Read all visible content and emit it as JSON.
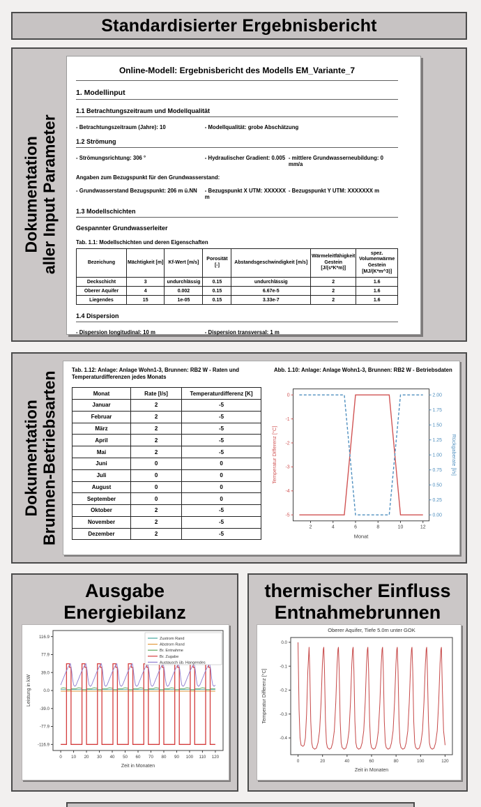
{
  "page": {
    "title": "Standardisierter Ergebnisbericht"
  },
  "colors": {
    "panel_gray": "#cbc7c7",
    "border_dark": "#4a4a4a",
    "temp_red": "#d05252",
    "rate_blue": "#4f8fbf"
  },
  "panel_input": {
    "side_label_line1": "Dokumentation",
    "side_label_line2": "aller Input Parameter",
    "doc": {
      "title": "Online-Modell: Ergebnisbericht des Modells EM_Variante_7",
      "s1": "1. Modellinput",
      "s11": "1.1 Betrachtungszeitraum und Modellqualität",
      "s11_items": [
        "- Betrachtungszeitraum (Jahre): 10",
        "- Modellqualität: grobe Abschätzung"
      ],
      "s12": "1.2 Strömung",
      "s12_row1": [
        "- Strömungsrichtung: 306 °",
        "- Hydraulischer Gradient: 0.005",
        "- mittlere Grundwasserneubildung: 0 mm/a"
      ],
      "s12_note": "Angaben zum Bezugspunkt für den Grundwasserstand:",
      "s12_row2": [
        "- Grundwasserstand Bezugspunkt: 206 m ü.NN",
        "- Bezugspunkt X UTM: XXXXXX m",
        "- Bezugspunkt Y UTM: XXXXXXX m"
      ],
      "s13": "1.3 Modellschichten",
      "s13_sub": "Gespannter Grundwasserleiter",
      "table_caption": "Tab. 1.1: Modellschichten und deren Eigenschaften",
      "layers_table": {
        "headers": [
          "Bezeichung",
          "Mächtigkeit [m]",
          "Kf-Wert [m/s]",
          "Porosität [-]",
          "Abstandsgeschwindigkeit [m/s]",
          "Wärmeleitfähigkeit\nGestein [J/(s*K*m)]",
          "spez. Volumenwärme\nGestein [MJ/(K*m^3)]"
        ],
        "rows": [
          [
            "Deckschicht",
            "3",
            "undurchlässig",
            "0.15",
            "undurchlässig",
            "2",
            "1.6"
          ],
          [
            "Oberer Aquifer",
            "4",
            "0.002",
            "0.15",
            "6.67e-5",
            "2",
            "1.6"
          ],
          [
            "Liegendes",
            "15",
            "1e-05",
            "0.15",
            "3.33e-7",
            "2",
            "1.6"
          ]
        ]
      },
      "s14": "1.4 Dispersion",
      "s14_items": [
        "- Dispersion longitudinal: 10 m",
        "- Dispersion transversal: 1 m"
      ]
    }
  },
  "panel_wells": {
    "side_label_line1": "Dokumentation",
    "side_label_line2": "Brunnen-Betriebsarten",
    "table_caption": "Tab. 1.12: Anlage: Anlage Wohn1-3, Brunnen: RB2 W - Raten und Temperaturdifferenzen jedes Monats",
    "figure_caption": "Abb. 1.10: Anlage: Anlage Wohn1-3, Brunnen: RB2 W - Betriebsdaten",
    "months_table": {
      "headers": [
        "Monat",
        "Rate [l/s]",
        "Temperaturdifferenz [K]"
      ],
      "rows": [
        [
          "Januar",
          "2",
          "-5"
        ],
        [
          "Februar",
          "2",
          "-5"
        ],
        [
          "März",
          "2",
          "-5"
        ],
        [
          "April",
          "2",
          "-5"
        ],
        [
          "Mai",
          "2",
          "-5"
        ],
        [
          "Juni",
          "0",
          "0"
        ],
        [
          "Juli",
          "0",
          "0"
        ],
        [
          "August",
          "0",
          "0"
        ],
        [
          "September",
          "0",
          "0"
        ],
        [
          "Oktober",
          "2",
          "-5"
        ],
        [
          "November",
          "2",
          "-5"
        ],
        [
          "Dezember",
          "2",
          "-5"
        ]
      ]
    }
  },
  "panel_energy": {
    "title_line1": "Ausgabe",
    "title_line2": "Energiebilanz"
  },
  "panel_thermal": {
    "title_line1": "thermischer Einfluss",
    "title_line2": "Entnahmebrunnen"
  },
  "chart_data": [
    {
      "id": "betriebsdaten",
      "type": "line",
      "xlabel": "Monat",
      "x_ticks": [
        2,
        4,
        6,
        8,
        10,
        12
      ],
      "months": [
        1,
        2,
        3,
        4,
        5,
        6,
        7,
        8,
        9,
        10,
        11,
        12
      ],
      "left_axis": {
        "label": "Temperatur Differenz [°C]",
        "color": "#d05252",
        "ticks": [
          "0",
          "-1",
          "-2",
          "-3",
          "-4",
          "-5"
        ],
        "min": -5,
        "max": 0
      },
      "right_axis": {
        "label": "Rückgaberate [l/s]",
        "color": "#4f8fbf",
        "ticks": [
          "2.00",
          "1.75",
          "1.50",
          "1.25",
          "1.00",
          "0.75",
          "0.50",
          "0.25",
          "0.00"
        ],
        "min": 0,
        "max": 2
      },
      "series": [
        {
          "name": "Temperatur Differenz [°C]",
          "axis": "left",
          "line": "solid",
          "color": "#d05252",
          "values": [
            -5,
            -5,
            -5,
            -5,
            -5,
            0,
            0,
            0,
            0,
            -5,
            -5,
            -5
          ]
        },
        {
          "name": "Rückgaberate [l/s]",
          "axis": "right",
          "line": "dashed",
          "color": "#4f8fbf",
          "values": [
            2,
            2,
            2,
            2,
            2,
            0,
            0,
            0,
            0,
            2,
            2,
            2
          ]
        }
      ]
    },
    {
      "id": "energiebilanz",
      "type": "line",
      "xlabel": "Zeit in Monaten",
      "ylabel": "Leistung in kW",
      "x_ticks": [
        0,
        10,
        20,
        30,
        40,
        50,
        60,
        70,
        80,
        90,
        100,
        110,
        120
      ],
      "y_ticks": [
        "116.9",
        "77.9",
        "39.0",
        "0.0",
        "-39.0",
        "-77.9",
        "-116.9"
      ],
      "xlim": [
        0,
        120
      ],
      "ylim": [
        -130,
        130
      ],
      "period_months": 12,
      "cycles": 10,
      "legend_position": "upper right",
      "series": [
        {
          "name": "Zustrom Rand",
          "color": "#46a69e",
          "cycle_points": [
            [
              0,
              2
            ],
            [
              12,
              2
            ]
          ]
        },
        {
          "name": "Abstrom Rand",
          "color": "#e29a3d",
          "cycle_points": [
            [
              0,
              -1.5
            ],
            [
              12,
              -1.5
            ]
          ]
        },
        {
          "name": "Br. Entnahme",
          "color": "#5fa85f",
          "cycle_points": [
            [
              0,
              4
            ],
            [
              1,
              5.5
            ],
            [
              2,
              6
            ],
            [
              3.5,
              5.5
            ],
            [
              4.4,
              4.5
            ],
            [
              4.6,
              1.5
            ],
            [
              7.9,
              1.5
            ],
            [
              8.1,
              3.5
            ],
            [
              10,
              4
            ],
            [
              12,
              4
            ]
          ]
        },
        {
          "name": "Br. Zugabe",
          "color": "#d43d3d",
          "cycle_points": [
            [
              0,
              -116.9
            ],
            [
              4.5,
              -116.9
            ],
            [
              4.5,
              58
            ],
            [
              6.8,
              58
            ],
            [
              6.8,
              50
            ],
            [
              8,
              50
            ],
            [
              8,
              -116.9
            ],
            [
              12,
              -116.9
            ]
          ]
        },
        {
          "name": "Austausch üb. Hangendes",
          "color": "#8f7fd0",
          "cycle_points": [
            [
              0,
              12
            ],
            [
              1,
              19
            ],
            [
              2,
              26
            ],
            [
              3,
              33
            ],
            [
              4,
              40
            ],
            [
              5,
              46
            ],
            [
              6,
              52
            ],
            [
              7,
              56
            ],
            [
              7.6,
              58
            ],
            [
              8.4,
              45
            ],
            [
              9.2,
              25
            ],
            [
              10,
              12
            ],
            [
              11,
              9
            ],
            [
              12,
              12
            ]
          ]
        }
      ]
    },
    {
      "id": "thermischer-einfluss",
      "type": "line",
      "title": "Oberer Aquifer, Tiefe 5.0m unter GOK",
      "xlabel": "Zeit in Monaten",
      "ylabel": "Temperatur Differenz [°C]",
      "x_ticks": [
        0,
        20,
        40,
        60,
        80,
        100,
        120
      ],
      "y_ticks": [
        "0.0",
        "-0.1",
        "-0.2",
        "-0.3",
        "-0.4"
      ],
      "xlim": [
        0,
        120
      ],
      "ylim": [
        -0.47,
        0.02
      ],
      "color": "#c64848",
      "start_points": [
        [
          0,
          0
        ],
        [
          0.8,
          -0.28
        ],
        [
          1.6,
          -0.4
        ],
        [
          2.5,
          -0.43
        ],
        [
          4,
          -0.435
        ],
        [
          5,
          -0.43
        ],
        [
          6,
          -0.4
        ],
        [
          7,
          -0.3
        ],
        [
          8,
          -0.12
        ],
        [
          9,
          -0.02
        ]
      ],
      "cycle_start": 9,
      "period_months": 12,
      "cycles": 9,
      "cycle_points": [
        [
          0,
          -0.02
        ],
        [
          0.6,
          -0.12
        ],
        [
          1.4,
          -0.33
        ],
        [
          2.2,
          -0.42
        ],
        [
          3,
          -0.44
        ],
        [
          4.5,
          -0.447
        ],
        [
          6,
          -0.443
        ],
        [
          7.3,
          -0.42
        ],
        [
          8.6,
          -0.37
        ],
        [
          9.8,
          -0.25
        ],
        [
          10.9,
          -0.09
        ],
        [
          11.6,
          -0.03
        ],
        [
          12,
          -0.02
        ]
      ],
      "tail_points": [
        [
          0,
          -0.02
        ],
        [
          0.8,
          -0.2
        ],
        [
          1.8,
          -0.37
        ],
        [
          3,
          -0.43
        ]
      ]
    }
  ]
}
